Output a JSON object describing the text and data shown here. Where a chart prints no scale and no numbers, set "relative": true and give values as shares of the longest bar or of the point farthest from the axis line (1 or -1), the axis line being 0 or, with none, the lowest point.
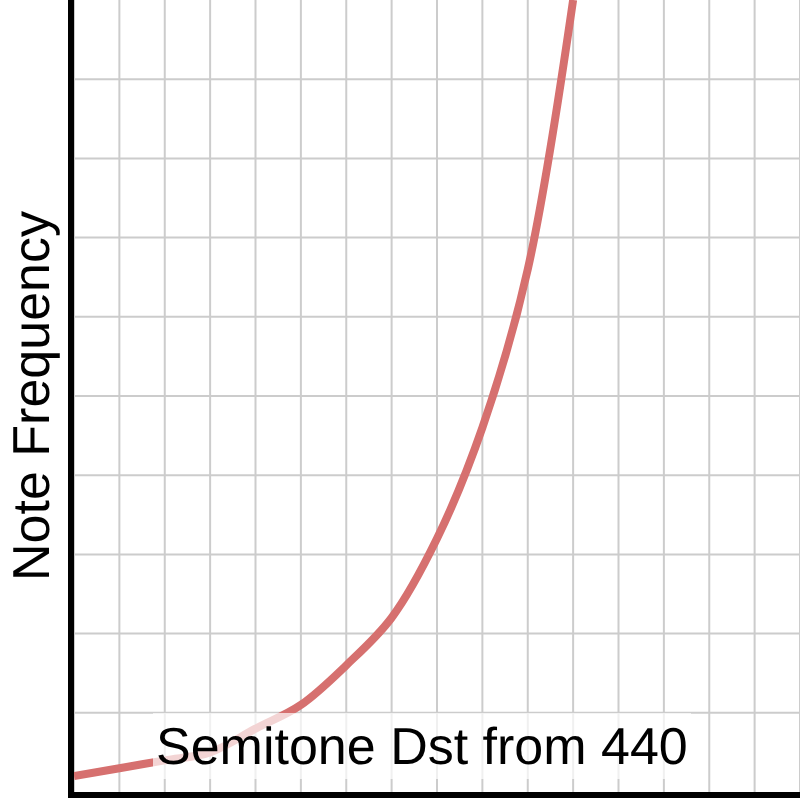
{
  "chart_data": {
    "type": "line",
    "relative": true,
    "xlabel": "Semitone Dst from 440",
    "ylabel": "Note Frequency",
    "categories": [
      null,
      null,
      null,
      null,
      null,
      null,
      null,
      null,
      null,
      null,
      null,
      null,
      null,
      null,
      null,
      null,
      null
    ],
    "series": [
      {
        "color": "#d6706f",
        "values": [
          0.02,
          0.03,
          0.04,
          0.05,
          0.08,
          0.11,
          0.16,
          0.22,
          0.32,
          0.46,
          0.66,
          1,
          null,
          null,
          null,
          null,
          null
        ]
      }
    ],
    "grid": true,
    "marker": "none",
    "line_style": "solid"
  }
}
